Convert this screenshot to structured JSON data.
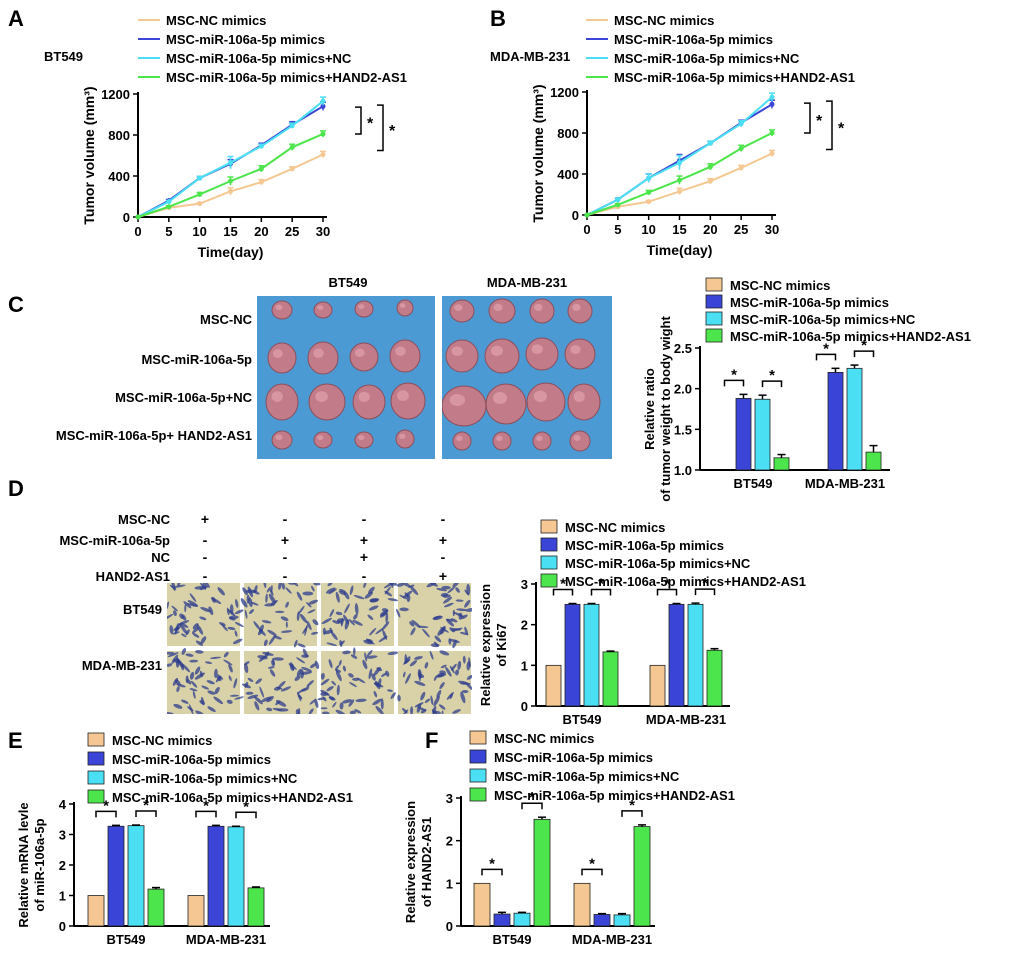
{
  "colors": {
    "nc": "#F5C893",
    "mir": "#3A45D8",
    "mirnc": "#4ADFF2",
    "hand2": "#4CE64C",
    "blue_bg": "#4C9AD4",
    "tumor": "#C97B86",
    "ihc_blue": "#2E3E8E",
    "ihc_bg": "#D9D2A8"
  },
  "legend": [
    "MSC-NC mimics",
    "MSC-miR-106a-5p mimics",
    "MSC-miR-106a-5p mimics+NC",
    "MSC-miR-106a-5p mimics+HAND2-AS1"
  ],
  "sig_symbol": "*",
  "panel_c": {
    "letter": "C",
    "photo_titles": [
      "BT549",
      "MDA-MB-231"
    ],
    "row_labels": [
      "MSC-NC",
      "MSC-miR-106a-5p",
      "MSC-miR-106a-5p+NC",
      "MSC-miR-106a-5p+ HAND2-AS1"
    ]
  },
  "panel_d": {
    "letter": "D",
    "conditions": [
      "MSC-NC",
      "MSC-miR-106a-5p",
      "NC",
      "HAND2-AS1"
    ],
    "signs": [
      [
        "+",
        "-",
        "-",
        "-"
      ],
      [
        "-",
        "+",
        "+",
        "+"
      ],
      [
        "-",
        "-",
        "+",
        "-"
      ],
      [
        "-",
        "-",
        "-",
        "+"
      ]
    ],
    "row_labels": [
      "BT549",
      "MDA-MB-231"
    ]
  },
  "chart_data": [
    {
      "panel": "A",
      "type": "line",
      "subtitle": "BT549",
      "xlabel": "Time(day)",
      "ylabel": "Tumor volume (mm³)",
      "x": [
        0,
        5,
        10,
        15,
        20,
        25,
        30
      ],
      "xticks": [
        "0",
        "5",
        "10",
        "15",
        "20",
        "25",
        "30"
      ],
      "yticks": [
        "0",
        "400",
        "800",
        "1200"
      ],
      "ylim": [
        0,
        1200
      ],
      "series": [
        {
          "name": "MSC-NC mimics",
          "values": [
            0,
            90,
            130,
            250,
            340,
            470,
            610
          ],
          "err": [
            0,
            10,
            10,
            35,
            25,
            20,
            30
          ]
        },
        {
          "name": "MSC-miR-106a-5p mimics",
          "values": [
            0,
            160,
            380,
            520,
            700,
            900,
            1080
          ],
          "err": [
            0,
            10,
            15,
            40,
            20,
            30,
            40
          ]
        },
        {
          "name": "MSC-miR-106a-5p mimics+NC",
          "values": [
            0,
            150,
            380,
            530,
            690,
            890,
            1130
          ],
          "err": [
            0,
            10,
            15,
            60,
            20,
            25,
            40
          ]
        },
        {
          "name": "MSC-miR-106a-5p mimics+HAND2-AS1",
          "values": [
            0,
            100,
            220,
            350,
            470,
            680,
            810
          ],
          "err": [
            0,
            10,
            20,
            40,
            30,
            30,
            30
          ]
        }
      ],
      "sig": [
        "*",
        "*"
      ]
    },
    {
      "panel": "B",
      "type": "line",
      "subtitle": "MDA-MB-231",
      "xlabel": "Time(day)",
      "ylabel": "Tumor volume (mm³)",
      "x": [
        0,
        5,
        10,
        15,
        20,
        25,
        30
      ],
      "xticks": [
        "0",
        "5",
        "10",
        "15",
        "20",
        "25",
        "30"
      ],
      "yticks": [
        "0",
        "400",
        "800",
        "1200"
      ],
      "ylim": [
        0,
        1200
      ],
      "series": [
        {
          "name": "MSC-NC mimics",
          "values": [
            0,
            80,
            130,
            230,
            330,
            460,
            600
          ],
          "err": [
            0,
            10,
            10,
            30,
            25,
            25,
            30
          ]
        },
        {
          "name": "MSC-miR-106a-5p mimics",
          "values": [
            0,
            150,
            360,
            530,
            700,
            900,
            1080
          ],
          "err": [
            0,
            15,
            40,
            60,
            20,
            25,
            40
          ]
        },
        {
          "name": "MSC-miR-106a-5p mimics+NC",
          "values": [
            0,
            150,
            360,
            510,
            700,
            890,
            1150
          ],
          "err": [
            0,
            15,
            40,
            70,
            20,
            30,
            40
          ]
        },
        {
          "name": "MSC-miR-106a-5p mimics+HAND2-AS1",
          "values": [
            0,
            100,
            220,
            340,
            470,
            650,
            800
          ],
          "err": [
            0,
            10,
            20,
            40,
            30,
            30,
            30
          ]
        }
      ],
      "sig": [
        "*",
        "*"
      ]
    },
    {
      "panel": "C",
      "type": "bar",
      "ylabel": "Relative ratio of tumor weight to body wight",
      "categories": [
        "BT549",
        "MDA-MB-231"
      ],
      "yticks": [
        "1.0",
        "1.5",
        "2.0",
        "2.5"
      ],
      "ylim": [
        1.0,
        2.5
      ],
      "series": [
        {
          "name": "MSC-NC mimics",
          "values": [
            1.0,
            1.0
          ],
          "err": [
            0,
            0
          ]
        },
        {
          "name": "MSC-miR-106a-5p mimics",
          "values": [
            1.88,
            2.2
          ],
          "err": [
            0.05,
            0.05
          ]
        },
        {
          "name": "MSC-miR-106a-5p mimics+NC",
          "values": [
            1.87,
            2.25
          ],
          "err": [
            0.05,
            0.04
          ]
        },
        {
          "name": "MSC-miR-106a-5p mimics+HAND2-AS1",
          "values": [
            1.15,
            1.22
          ],
          "err": [
            0.04,
            0.08
          ]
        }
      ]
    },
    {
      "panel": "D",
      "type": "bar",
      "ylabel": "Relative expression of Ki67",
      "categories": [
        "BT549",
        "MDA-MB-231"
      ],
      "yticks": [
        "0",
        "1",
        "2",
        "3"
      ],
      "ylim": [
        0,
        3
      ],
      "series": [
        {
          "name": "MSC-NC mimics",
          "values": [
            1.0,
            1.0
          ],
          "err": [
            0,
            0
          ]
        },
        {
          "name": "MSC-miR-106a-5p mimics",
          "values": [
            2.5,
            2.5
          ],
          "err": [
            0.02,
            0.02
          ]
        },
        {
          "name": "MSC-miR-106a-5p mimics+NC",
          "values": [
            2.5,
            2.5
          ],
          "err": [
            0.02,
            0.03
          ]
        },
        {
          "name": "MSC-miR-106a-5p mimics+HAND2-AS1",
          "values": [
            1.33,
            1.37
          ],
          "err": [
            0.02,
            0.04
          ]
        }
      ]
    },
    {
      "panel": "E",
      "type": "bar",
      "ylabel": "Relative mRNA levle of miR-106a-5p",
      "categories": [
        "BT549",
        "MDA-MB-231"
      ],
      "yticks": [
        "0",
        "1",
        "2",
        "3",
        "4"
      ],
      "ylim": [
        0,
        4
      ],
      "series": [
        {
          "name": "MSC-NC mimics",
          "values": [
            1.0,
            1.0
          ],
          "err": [
            0,
            0
          ]
        },
        {
          "name": "MSC-miR-106a-5p mimics",
          "values": [
            3.27,
            3.27
          ],
          "err": [
            0.03,
            0.03
          ]
        },
        {
          "name": "MSC-miR-106a-5p mimics+NC",
          "values": [
            3.29,
            3.25
          ],
          "err": [
            0.02,
            0.02
          ]
        },
        {
          "name": "MSC-miR-106a-5p mimics+HAND2-AS1",
          "values": [
            1.21,
            1.25
          ],
          "err": [
            0.05,
            0.03
          ]
        }
      ]
    },
    {
      "panel": "F",
      "type": "bar",
      "ylabel": "Relative expression of HAND2-AS1",
      "categories": [
        "BT549",
        "MDA-MB-231"
      ],
      "yticks": [
        "0",
        "1",
        "2",
        "3"
      ],
      "ylim": [
        0,
        3
      ],
      "series": [
        {
          "name": "MSC-NC mimics",
          "values": [
            1.0,
            1.0
          ],
          "err": [
            0,
            0
          ]
        },
        {
          "name": "MSC-miR-106a-5p mimics",
          "values": [
            0.28,
            0.27
          ],
          "err": [
            0.04,
            0.02
          ]
        },
        {
          "name": "MSC-miR-106a-5p mimics+NC",
          "values": [
            0.3,
            0.26
          ],
          "err": [
            0.02,
            0.03
          ]
        },
        {
          "name": "MSC-miR-106a-5p mimics+HAND2-AS1",
          "values": [
            2.5,
            2.33
          ],
          "err": [
            0.05,
            0.04
          ]
        }
      ]
    }
  ]
}
